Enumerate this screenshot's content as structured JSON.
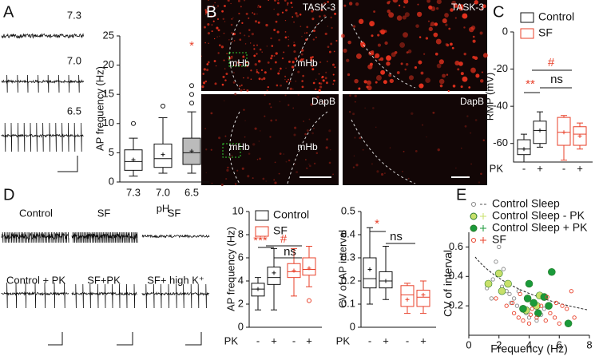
{
  "panel_labels": [
    "A",
    "B",
    "C",
    "D",
    "E"
  ],
  "trace_labels_a": [
    "7.3",
    "7.0",
    "6.5"
  ],
  "trace_labels_d": [
    "Control",
    "SF",
    "SF",
    "Control + PK",
    "SF+PK",
    "SF+ high K⁺"
  ],
  "images": {
    "regions": [
      "mHb",
      "mHb",
      "mHb",
      "mHb"
    ],
    "stains": [
      "TASK-3",
      "TASK-3",
      "DapB",
      "DapB"
    ]
  },
  "chart_data": [
    {
      "type": "box",
      "y_label": "AP frequency (Hz)",
      "x_label": "pH",
      "categories": [
        "7.3",
        "7.0",
        "6.5"
      ],
      "ylim": [
        0,
        25
      ],
      "yticks": [
        0,
        5,
        10,
        15,
        20,
        25
      ],
      "annotations": [
        "*"
      ],
      "series": [
        {
          "color": "#111111",
          "fills": [
            "#ffffff",
            "#ffffff",
            "#bbbbbb"
          ],
          "boxes": [
            {
              "min": 1,
              "q1": 2,
              "median": 3.5,
              "q3": 5.5,
              "max": 7.5,
              "mean": 3.8,
              "outliers": [
                10
              ]
            },
            {
              "min": 1.5,
              "q1": 2.5,
              "median": 4,
              "q3": 6.5,
              "max": 11,
              "mean": 4.7,
              "outliers": [
                13
              ]
            },
            {
              "min": 1.5,
              "q1": 3,
              "median": 5,
              "q3": 7.5,
              "max": 12,
              "mean": 5.3,
              "outliers": [
                13.5,
                15,
                16.5
              ]
            }
          ]
        }
      ]
    },
    {
      "type": "box",
      "y_label": "RMP (mV)",
      "x_label": "PK",
      "categories": [
        "-",
        "+",
        "-",
        "+"
      ],
      "ylim": [
        -70,
        0
      ],
      "yticks": [
        0,
        -20,
        -40,
        -60
      ],
      "legend": true,
      "annotations": [
        "#",
        "**",
        "ns"
      ],
      "series": [
        {
          "name": "Control",
          "color": "#111111",
          "boxes": [
            {
              "min": -70,
              "q1": -66,
              "median": -63,
              "q3": -58,
              "max": -55,
              "mean": -63,
              "outliers": []
            },
            {
              "min": -62,
              "q1": -60,
              "median": -53,
              "q3": -48,
              "max": -43,
              "mean": -53,
              "outliers": []
            },
            null,
            null
          ]
        },
        {
          "name": "SF",
          "color": "#e8402a",
          "boxes": [
            null,
            null,
            {
              "min": -69,
              "q1": -61,
              "median": -54,
              "q3": -46,
              "max": -45,
              "mean": -54,
              "outliers": []
            },
            {
              "min": -63,
              "q1": -61,
              "median": -55,
              "q3": -51,
              "max": -49,
              "mean": -56,
              "outliers": []
            }
          ]
        }
      ]
    },
    {
      "type": "box",
      "y_label": "AP frequency (Hz)",
      "x_label": "PK",
      "categories": [
        "-",
        "+",
        "-",
        "+"
      ],
      "ylim": [
        0,
        10
      ],
      "yticks": [
        0,
        2,
        4,
        6,
        8,
        10
      ],
      "legend": true,
      "annotations": [
        "***",
        "#",
        "ns"
      ],
      "series": [
        {
          "name": "Control",
          "color": "#111111",
          "boxes": [
            {
              "min": 1.5,
              "q1": 2.7,
              "median": 3.3,
              "q3": 3.8,
              "max": 4.3,
              "mean": 3.3,
              "outliers": []
            },
            {
              "min": 1.5,
              "q1": 3.7,
              "median": 4.3,
              "q3": 5.2,
              "max": 6.8,
              "mean": 4.7,
              "outliers": []
            },
            null,
            null
          ]
        },
        {
          "name": "SF",
          "color": "#e8402a",
          "boxes": [
            null,
            null,
            {
              "min": 2.7,
              "q1": 4.3,
              "median": 4.8,
              "q3": 5.5,
              "max": 6.8,
              "mean": 4.9,
              "outliers": []
            },
            {
              "min": 3.5,
              "q1": 4.5,
              "median": 5,
              "q3": 6,
              "max": 7,
              "mean": 5.1,
              "outliers": [
                2.3
              ]
            }
          ]
        }
      ]
    },
    {
      "type": "box",
      "y_label": "CV of AP interval",
      "x_label": "PK",
      "categories": [
        "-",
        "+",
        "-",
        "+"
      ],
      "ylim": [
        0,
        0.5
      ],
      "yticks": [
        0,
        0.1,
        0.2,
        0.3,
        0.4,
        0.5
      ],
      "annotations": [
        "*",
        "ns"
      ],
      "series": [
        {
          "color": "#111111",
          "boxes": [
            {
              "min": 0.1,
              "q1": 0.17,
              "median": 0.21,
              "q3": 0.3,
              "max": 0.43,
              "mean": 0.25,
              "outliers": []
            },
            {
              "min": 0.12,
              "q1": 0.17,
              "median": 0.2,
              "q3": 0.24,
              "max": 0.35,
              "mean": 0.2,
              "outliers": []
            },
            null,
            null
          ]
        },
        {
          "color": "#e8402a",
          "boxes": [
            null,
            null,
            {
              "min": 0.06,
              "q1": 0.09,
              "median": 0.14,
              "q3": 0.18,
              "max": 0.19,
              "mean": 0.12,
              "outliers": []
            },
            {
              "min": 0.06,
              "q1": 0.09,
              "median": 0.13,
              "q3": 0.16,
              "max": 0.2,
              "mean": 0.14,
              "outliers": []
            }
          ]
        }
      ]
    },
    {
      "type": "scatter",
      "x_label": "Frequency (Hz)",
      "y_label": "CV of interval",
      "xlim": [
        0,
        8
      ],
      "xticks": [
        0,
        2,
        4,
        6,
        8
      ],
      "ylim": [
        0,
        0.7
      ],
      "yticks": [
        0.2,
        0.4,
        0.6
      ],
      "series": [
        {
          "name": "Control Sleep",
          "color": "#888888",
          "filled": false,
          "x": [
            1.2,
            1.6,
            1.8,
            2,
            2.3,
            2.5,
            2.7,
            3,
            3.2,
            3.5,
            3.8,
            4,
            4.2,
            4.5,
            5,
            2.2,
            1.5,
            3.3,
            4.8,
            2.8
          ],
          "values": [
            0.32,
            0.38,
            0.5,
            0.6,
            0.45,
            0.3,
            0.28,
            0.25,
            0.2,
            0.18,
            0.15,
            0.12,
            0.22,
            0.1,
            0.18,
            0.33,
            0.25,
            0.3,
            0.14,
            0.22
          ]
        },
        {
          "name": "Control Sleep - PK",
          "color": "#c8e06a",
          "filled": true,
          "x": [
            1.3,
            2,
            2.2,
            3.8,
            4.5,
            4.7,
            2.6
          ],
          "values": [
            0.35,
            0.42,
            0.3,
            0.17,
            0.2,
            0.27,
            0.35
          ]
        },
        {
          "name": "Control Sleep + PK",
          "color": "#1a9a3a",
          "filled": true,
          "x": [
            4,
            5.5,
            3.6,
            4.3,
            5,
            3.9,
            4.6,
            6.6,
            5.3
          ],
          "values": [
            0.35,
            0.43,
            0.18,
            0.22,
            0.26,
            0.25,
            0.15,
            0.08,
            0.2
          ]
        },
        {
          "name": "SF",
          "color": "#e8402a",
          "filled": false,
          "x": [
            1.8,
            2.5,
            3,
            3.3,
            3.6,
            4,
            4.2,
            4.5,
            4.8,
            5.1,
            5.4,
            5.7,
            6,
            6.2,
            6.5,
            6.8,
            7,
            5.8,
            3.4,
            2.9,
            4.1,
            5.2
          ],
          "values": [
            0.25,
            0.2,
            0.15,
            0.12,
            0.1,
            0.08,
            0.18,
            0.12,
            0.2,
            0.1,
            0.15,
            0.12,
            0.08,
            0.2,
            0.18,
            0.3,
            0.12,
            0.22,
            0.28,
            0.22,
            0.14,
            0.26
          ]
        }
      ]
    }
  ]
}
